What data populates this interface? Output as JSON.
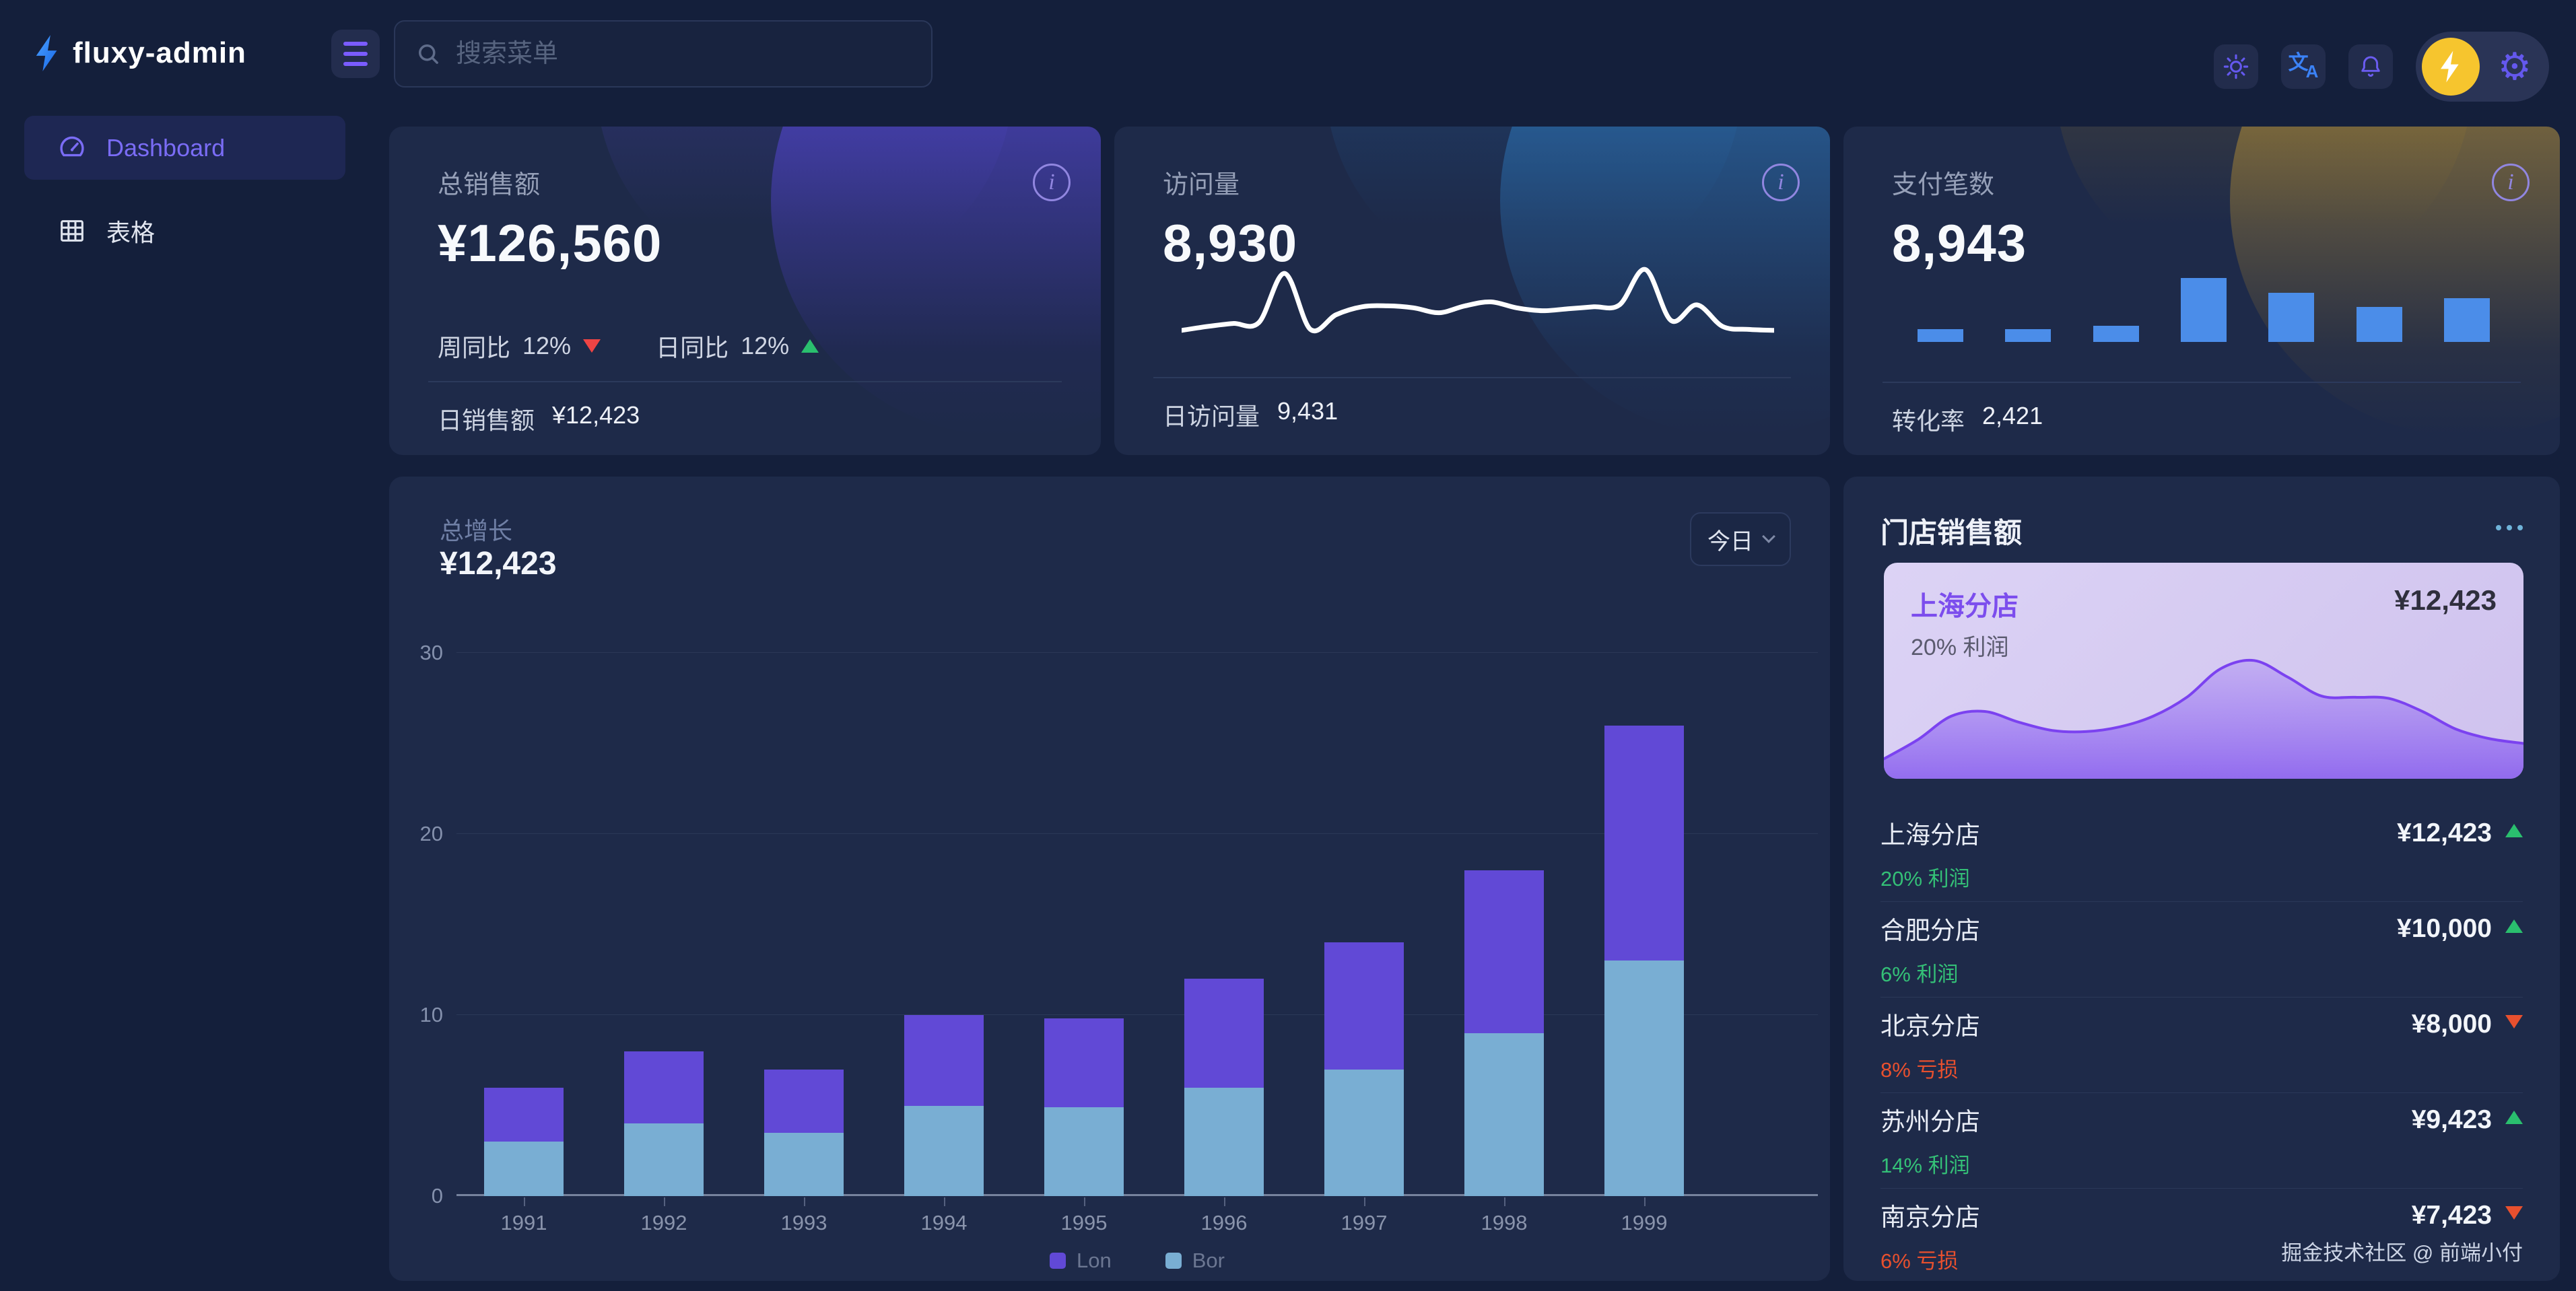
{
  "brand": {
    "name": "fluxy-admin"
  },
  "header": {
    "search_placeholder": "搜索菜单",
    "icons": [
      "theme-sun",
      "translate",
      "notifications-bell",
      "user-avatar-bolt",
      "settings-gear"
    ]
  },
  "sidebar": {
    "items": [
      {
        "label": "Dashboard",
        "icon": "dashboard-gauge",
        "active": true
      },
      {
        "label": "表格",
        "icon": "table-grid",
        "active": false
      }
    ]
  },
  "stat_cards": [
    {
      "label": "总销售额",
      "value": "¥126,560",
      "week_label": "周同比",
      "week_value": "12%",
      "week_trend": "down",
      "day_label": "日同比",
      "day_value": "12%",
      "day_trend": "up",
      "footer_label": "日销售额",
      "footer_value": "¥12,423"
    },
    {
      "label": "访问量",
      "value": "8,930",
      "footer_label": "日访问量",
      "footer_value": "9,431"
    },
    {
      "label": "支付笔数",
      "value": "8,943",
      "footer_label": "转化率",
      "footer_value": "2,421"
    }
  ],
  "growth": {
    "title": "总增长",
    "amount": "¥12,423",
    "range_label": "今日"
  },
  "chart_data": [
    {
      "name": "growth-stacked-bars",
      "type": "bar",
      "stacked": true,
      "title": "总增长",
      "categories": [
        "1991",
        "1992",
        "1993",
        "1994",
        "1995",
        "1996",
        "1997",
        "1998",
        "1999"
      ],
      "series": [
        {
          "name": "Lon",
          "color": "#6149d6",
          "values": [
            3,
            4,
            3.5,
            5,
            4.9,
            6,
            7,
            9,
            13
          ]
        },
        {
          "name": "Bor",
          "color": "#79aed3",
          "values": [
            3,
            4,
            3.5,
            5,
            4.9,
            6,
            7,
            9,
            13
          ]
        }
      ],
      "ylim": [
        0,
        30
      ],
      "yticks": [
        0,
        10,
        20,
        30
      ],
      "grid": true,
      "legend_position": "bottom"
    },
    {
      "name": "visits-sparkline",
      "type": "line",
      "color": "#ffffff",
      "values": [
        2.0,
        2.4,
        2.7,
        2.8,
        7.8,
        2.1,
        3.6,
        4.4,
        4.5,
        4.3,
        3.8,
        4.5,
        4.9,
        4.3,
        4.0,
        4.2,
        4.4,
        4.6,
        8.2,
        3.0,
        4.6,
        2.4,
        2.1,
        2.0
      ],
      "ymax": 8.5
    },
    {
      "name": "payments-mini-bars",
      "type": "bar",
      "color": "#4b8de9",
      "values": [
        2,
        2,
        2.5,
        10,
        7.7,
        5.5,
        6.8
      ],
      "ymax": 10
    },
    {
      "name": "shanghai-store-area",
      "type": "area",
      "color": "#7b42f0",
      "values": [
        1.0,
        2.6,
        4.6,
        5.0,
        4.1,
        3.4,
        3.3,
        3.7,
        4.6,
        6.2,
        8.6,
        9.3,
        7.9,
        6.3,
        6.2,
        6.1,
        5.0,
        3.5,
        2.7,
        2.3
      ],
      "ymax": 10
    }
  ],
  "stores": {
    "title": "门店销售额",
    "featured": {
      "name": "上海分店",
      "value": "¥12,423",
      "sub": "20% 利润"
    },
    "rows": [
      {
        "name": "上海分店",
        "sub": "20% 利润",
        "sub_type": "profit",
        "value": "¥12,423",
        "trend": "up"
      },
      {
        "name": "合肥分店",
        "sub": "6% 利润",
        "sub_type": "profit",
        "value": "¥10,000",
        "trend": "up"
      },
      {
        "name": "北京分店",
        "sub": "8% 亏损",
        "sub_type": "loss",
        "value": "¥8,000",
        "trend": "down"
      },
      {
        "name": "苏州分店",
        "sub": "14% 利润",
        "sub_type": "profit",
        "value": "¥9,423",
        "trend": "up"
      },
      {
        "name": "南京分店",
        "sub": "6% 亏损",
        "sub_type": "loss",
        "value": "¥7,423",
        "trend": "down"
      }
    ]
  },
  "watermark": "掘金技术社区 @ 前端小付",
  "colors": {
    "accent_purple": "#6458ee",
    "bar_purple": "#6149d6",
    "bar_blue": "#79aed3",
    "mini_bar_blue": "#4b8de9",
    "green_up": "#2abf6e",
    "red_down": "#ef4444",
    "orange_loss": "#e8502e",
    "card_bg": "#1e2a49",
    "page_bg": "#141f3b",
    "avatar_yellow": "#f6c52e"
  }
}
